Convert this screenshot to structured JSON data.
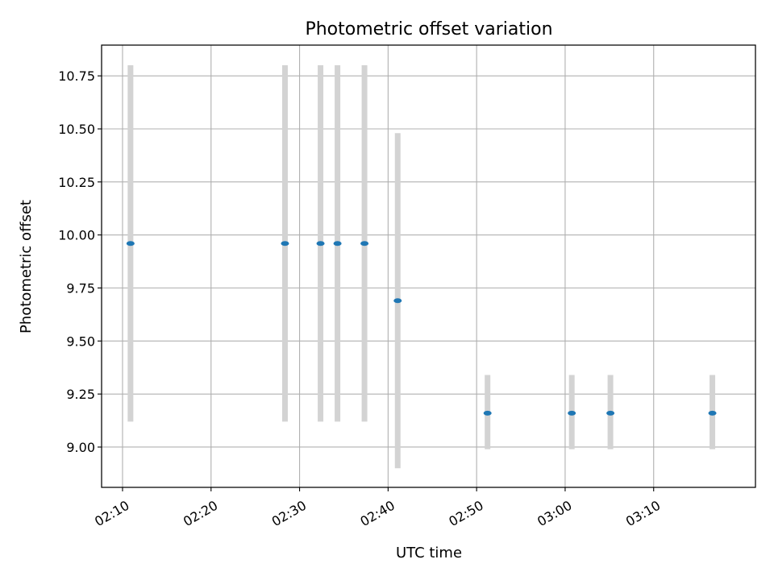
{
  "colors": {
    "marker": "#1f77b4",
    "errorbar": "#d3d3d3",
    "grid": "#b0b0b0",
    "axis": "#000000",
    "background": "#ffffff"
  },
  "chart_data": {
    "type": "scatter",
    "title": "Photometric offset variation",
    "xlabel": "UTC time",
    "ylabel": "Photometric offset",
    "grid": true,
    "legend": "none",
    "xlim": [
      "02:07:38",
      "03:21:30"
    ],
    "ylim": [
      8.81,
      10.895
    ],
    "x_ticks": [
      "02:10",
      "02:20",
      "02:30",
      "02:40",
      "02:50",
      "03:00",
      "03:10"
    ],
    "y_ticks": [
      "9.00",
      "9.25",
      "9.50",
      "9.75",
      "10.00",
      "10.25",
      "10.50",
      "10.75"
    ],
    "series": [
      {
        "points": [
          {
            "x": "02:10:54",
            "y": 9.96,
            "ylow": 9.12,
            "yhigh": 10.8
          },
          {
            "x": "02:28:21",
            "y": 9.96,
            "ylow": 9.12,
            "yhigh": 10.8
          },
          {
            "x": "02:32:22",
            "y": 9.96,
            "ylow": 9.12,
            "yhigh": 10.8
          },
          {
            "x": "02:34:17",
            "y": 9.96,
            "ylow": 9.12,
            "yhigh": 10.8
          },
          {
            "x": "02:37:20",
            "y": 9.96,
            "ylow": 9.12,
            "yhigh": 10.8
          },
          {
            "x": "02:41:05",
            "y": 9.69,
            "ylow": 8.9,
            "yhigh": 10.48
          },
          {
            "x": "02:51:14",
            "y": 9.16,
            "ylow": 8.99,
            "yhigh": 9.34
          },
          {
            "x": "03:00:45",
            "y": 9.16,
            "ylow": 8.99,
            "yhigh": 9.34
          },
          {
            "x": "03:05:07",
            "y": 9.16,
            "ylow": 8.99,
            "yhigh": 9.34
          },
          {
            "x": "03:16:38",
            "y": 9.16,
            "ylow": 8.99,
            "yhigh": 9.34
          }
        ]
      }
    ]
  }
}
